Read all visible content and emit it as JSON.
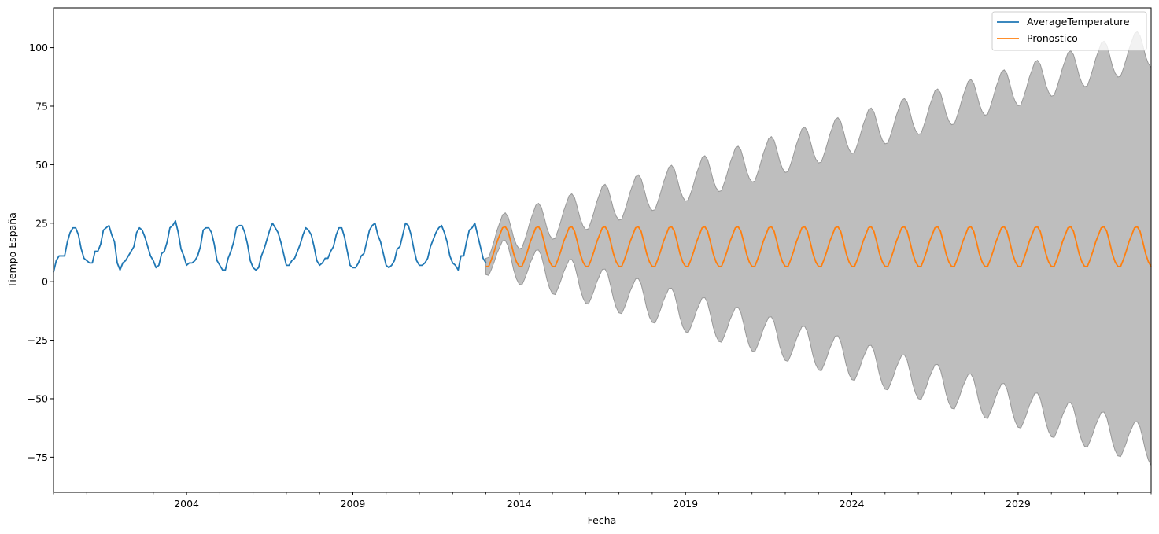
{
  "chart_data": {
    "type": "line",
    "xlabel": "Fecha",
    "ylabel": "Tiempo España",
    "xlim": [
      2000.0,
      2033.0
    ],
    "ylim": [
      -90,
      117
    ],
    "x_ticks": [
      {
        "value": 2004,
        "label": "2004"
      },
      {
        "value": 2009,
        "label": "2009"
      },
      {
        "value": 2014,
        "label": "2014"
      },
      {
        "value": 2019,
        "label": "2019"
      },
      {
        "value": 2024,
        "label": "2024"
      },
      {
        "value": 2029,
        "label": "2029"
      }
    ],
    "y_ticks": [
      {
        "value": 100,
        "label": "100"
      },
      {
        "value": 75,
        "label": "75"
      },
      {
        "value": 50,
        "label": "50"
      },
      {
        "value": 25,
        "label": "25"
      },
      {
        "value": 0,
        "label": "0"
      },
      {
        "value": -25,
        "label": "−25"
      },
      {
        "value": -50,
        "label": "−50"
      },
      {
        "value": -75,
        "label": "−75"
      }
    ],
    "legend": {
      "position": "top-right",
      "entries": [
        {
          "label": "AverageTemperature",
          "color": "#1f77b4"
        },
        {
          "label": "Pronostico",
          "color": "#ff7f0e"
        }
      ]
    },
    "series": [
      {
        "name": "AverageTemperature",
        "color": "#1f77b4",
        "start": 2000.0,
        "step_months": 1,
        "values": [
          4,
          9,
          11,
          11,
          11,
          17,
          21,
          23,
          23,
          20,
          14,
          10,
          9,
          8,
          8,
          13,
          13,
          16,
          22,
          23,
          24,
          20,
          17,
          8,
          5,
          8,
          9,
          11,
          13,
          15,
          21,
          23,
          22,
          19,
          15,
          11,
          9,
          6,
          7,
          12,
          13,
          17,
          23,
          24,
          26,
          21,
          14,
          11,
          7,
          8,
          8,
          9,
          11,
          15,
          22,
          23,
          23,
          21,
          16,
          9,
          7,
          5,
          5,
          10,
          13,
          17,
          23,
          24,
          24,
          21,
          16,
          9,
          6,
          5,
          6,
          11,
          14,
          18,
          22,
          25,
          23,
          21,
          17,
          12,
          7,
          7,
          9,
          10,
          13,
          16,
          20,
          23,
          22,
          20,
          15,
          9,
          7,
          8,
          10,
          10,
          13,
          15,
          20,
          23,
          23,
          19,
          13,
          7,
          6,
          6,
          8,
          11,
          12,
          17,
          22,
          24,
          25,
          20,
          17,
          12,
          7,
          6,
          7,
          9,
          14,
          15,
          20,
          25,
          24,
          20,
          14,
          9,
          7,
          7,
          8,
          10,
          15,
          18,
          21,
          23,
          24,
          21,
          17,
          11,
          8,
          7,
          5,
          11,
          11,
          17,
          22,
          23,
          25,
          20,
          15,
          10,
          8
        ]
      },
      {
        "name": "Pronostico",
        "color": "#ff7f0e",
        "start": 2013.0,
        "step_months": 1,
        "values": [
          6.5,
          6.5,
          9.5,
          13,
          17,
          20,
          23,
          23.5,
          21.5,
          17,
          12,
          8.5
        ]
      }
    ],
    "forecast_pattern": [
      6.5,
      6.5,
      9.5,
      13,
      17,
      20,
      23,
      23.5,
      21.5,
      17,
      12,
      8.5
    ],
    "forecast_end": 2033.0,
    "confidence_interval": {
      "color": "#bebebe",
      "edge_color": "#999999",
      "half_width_start": 3.5,
      "half_width_end": 85
    }
  }
}
